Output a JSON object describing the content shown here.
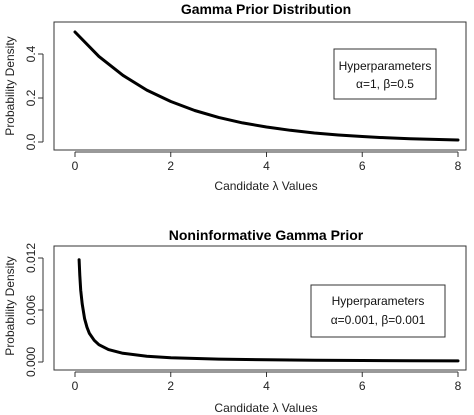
{
  "chart_data": [
    {
      "type": "line",
      "title": "Gamma Prior Distribution",
      "xlabel": "Candidate λ Values",
      "ylabel": "Probability Density",
      "xlim": [
        0,
        8
      ],
      "ylim": [
        0,
        0.5
      ],
      "xticks": [
        "0",
        "2",
        "4",
        "6",
        "8"
      ],
      "yticks": [
        "0.0",
        "0.2",
        "0.4"
      ],
      "legend_position": "right",
      "legend": {
        "title": "Hyperparameters",
        "text": "α=1, β=0.5"
      },
      "series": [
        {
          "x": [
            0,
            0.5,
            1,
            1.5,
            2,
            2.5,
            3,
            3.5,
            4,
            4.5,
            5,
            5.5,
            6,
            6.5,
            7,
            7.5,
            8
          ],
          "y": [
            0.5,
            0.389,
            0.303,
            0.236,
            0.184,
            0.143,
            0.112,
            0.087,
            0.068,
            0.053,
            0.041,
            0.032,
            0.025,
            0.019,
            0.015,
            0.012,
            0.009
          ]
        }
      ]
    },
    {
      "type": "line",
      "title": "Noninformative Gamma Prior",
      "xlabel": "Candidate λ Values",
      "ylabel": "Probability Density",
      "xlim": [
        0,
        8
      ],
      "ylim": [
        0,
        0.012
      ],
      "xticks": [
        "0",
        "2",
        "4",
        "6",
        "8"
      ],
      "yticks": [
        "0.000",
        "0.006",
        "0.012"
      ],
      "legend_position": "right",
      "legend": {
        "title": "Hyperparameters",
        "text": "α=0.001, β=0.001"
      },
      "series": [
        {
          "x": [
            0.085,
            0.1,
            0.12,
            0.15,
            0.2,
            0.25,
            0.3,
            0.4,
            0.5,
            0.7,
            1,
            1.5,
            2,
            3,
            4,
            5,
            6,
            7,
            8
          ],
          "y": [
            0.0118,
            0.01,
            0.0083,
            0.0067,
            0.005,
            0.004,
            0.0033,
            0.0025,
            0.002,
            0.00143,
            0.001,
            0.00067,
            0.0005,
            0.00033,
            0.00025,
            0.0002,
            0.00017,
            0.00014,
            0.000125
          ]
        }
      ]
    }
  ]
}
